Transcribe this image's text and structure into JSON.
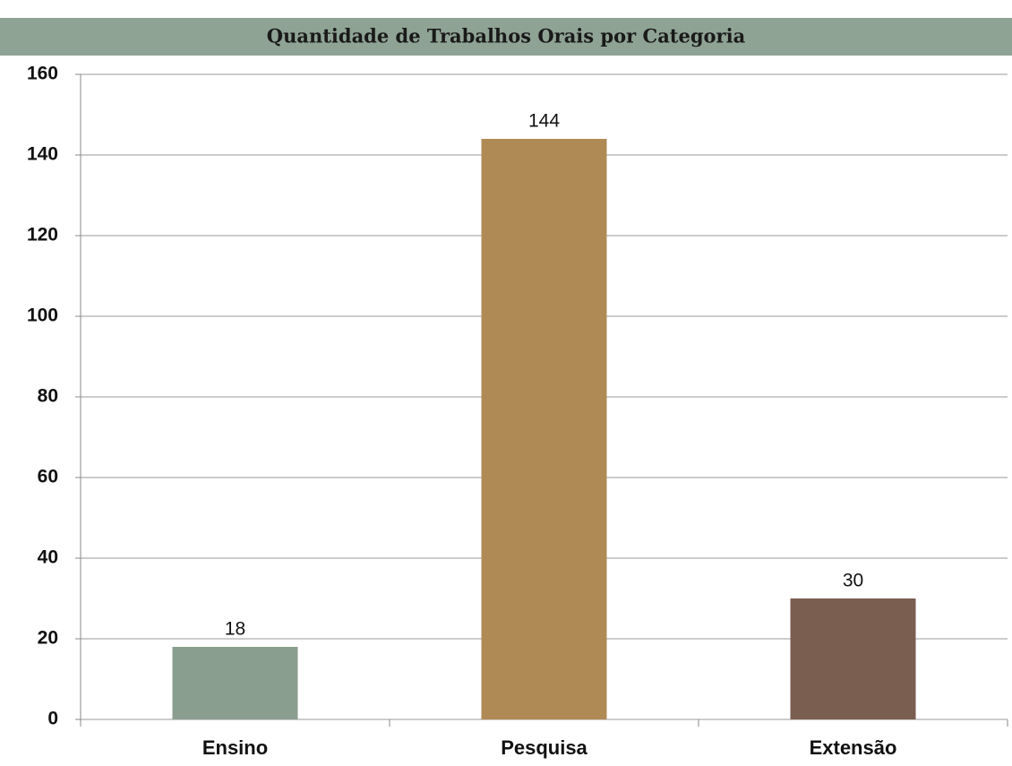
{
  "chart_data": {
    "type": "bar",
    "title": "Quantidade de Trabalhos Orais por Categoria",
    "categories": [
      "Ensino",
      "Pesquisa",
      "Extensão"
    ],
    "values": [
      18,
      144,
      30
    ],
    "colors": [
      "#8a9e8f",
      "#b08a55",
      "#7a5e50"
    ],
    "ylim": [
      0,
      160
    ],
    "yticks": [
      0,
      20,
      40,
      60,
      80,
      100,
      120,
      140,
      160
    ],
    "grid": true
  }
}
